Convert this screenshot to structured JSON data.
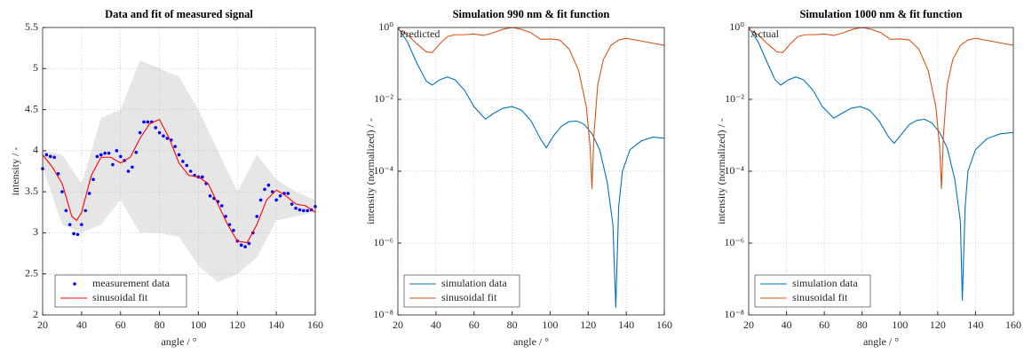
{
  "chart_data": [
    {
      "type": "line",
      "title": "Data and fit of measured signal",
      "x_label": "angle / °",
      "y_label": "intensity / -",
      "xlim": [
        20,
        160
      ],
      "ylim": [
        2,
        5.5
      ],
      "xticks": [
        20,
        40,
        60,
        80,
        100,
        120,
        140,
        160
      ],
      "yticks": [
        2,
        2.5,
        3,
        3.5,
        4,
        4.5,
        5,
        5.5
      ],
      "grid": true,
      "legend": "lower left",
      "band": {
        "color": "#e6e6e6",
        "x": [
          20,
          30,
          40,
          50,
          60,
          70,
          80,
          90,
          100,
          110,
          120,
          130,
          140,
          150,
          160
        ],
        "upper": [
          4.0,
          3.95,
          3.6,
          4.4,
          4.5,
          5.1,
          5.0,
          4.9,
          4.5,
          4.0,
          3.5,
          3.95,
          3.65,
          3.5,
          3.4
        ],
        "lower": [
          3.8,
          3.1,
          3.0,
          3.1,
          3.4,
          3.0,
          3.0,
          2.95,
          2.6,
          2.4,
          2.5,
          2.7,
          3.15,
          3.2,
          3.25
        ]
      },
      "series": [
        {
          "name": "measurement data",
          "type": "scatter",
          "color": "#0000ff",
          "x": [
            20,
            22,
            24,
            26,
            28,
            30,
            32,
            34,
            36,
            38,
            40,
            42,
            44,
            46,
            48,
            50,
            52,
            54,
            56,
            58,
            60,
            62,
            64,
            66,
            68,
            70,
            72,
            74,
            76,
            78,
            80,
            82,
            84,
            86,
            88,
            90,
            92,
            94,
            96,
            98,
            100,
            102,
            104,
            106,
            108,
            110,
            112,
            114,
            116,
            118,
            120,
            122,
            124,
            126,
            128,
            130,
            132,
            134,
            136,
            138,
            140,
            142,
            144,
            146,
            148,
            150,
            152,
            154,
            156,
            158,
            160
          ],
          "values": [
            3.78,
            3.95,
            3.93,
            3.92,
            3.72,
            3.5,
            3.27,
            3.1,
            2.99,
            2.98,
            3.1,
            3.27,
            3.48,
            3.65,
            3.93,
            3.95,
            3.97,
            3.97,
            3.83,
            4.0,
            3.93,
            3.88,
            3.75,
            3.8,
            3.98,
            4.22,
            4.35,
            4.35,
            4.35,
            4.28,
            4.22,
            4.18,
            4.15,
            4.13,
            4.05,
            3.95,
            3.87,
            3.82,
            3.75,
            3.7,
            3.68,
            3.68,
            3.6,
            3.45,
            3.42,
            3.38,
            3.33,
            3.2,
            3.1,
            3.03,
            2.9,
            2.85,
            2.83,
            2.87,
            3.0,
            3.2,
            3.4,
            3.53,
            3.58,
            3.5,
            3.4,
            3.45,
            3.48,
            3.48,
            3.35,
            3.3,
            3.28,
            3.27,
            3.27,
            3.28,
            3.32
          ]
        },
        {
          "name": "sinusoidal fit",
          "type": "line",
          "color": "#ff0000",
          "x": [
            20,
            25,
            30,
            35,
            37.5,
            40,
            45,
            50,
            55,
            60,
            65,
            70,
            75,
            80,
            85,
            90,
            95,
            100,
            105,
            110,
            115,
            120,
            125,
            130,
            135,
            140,
            145,
            150,
            155,
            160
          ],
          "values": [
            3.95,
            3.8,
            3.6,
            3.2,
            3.15,
            3.25,
            3.7,
            3.92,
            3.92,
            3.85,
            3.92,
            4.15,
            4.33,
            4.38,
            4.15,
            3.85,
            3.7,
            3.68,
            3.6,
            3.35,
            3.1,
            2.9,
            2.88,
            3.1,
            3.4,
            3.52,
            3.45,
            3.35,
            3.33,
            3.25
          ]
        }
      ]
    },
    {
      "type": "line",
      "title": "Simulation 990 nm & fit function",
      "x_label": "angle / °",
      "y_label": "intensity (normalized) / -",
      "annotation": "Predicted",
      "log_y": true,
      "xlim": [
        20,
        160
      ],
      "ylim": [
        1e-08,
        1
      ],
      "xticks": [
        20,
        40,
        60,
        80,
        100,
        120,
        140,
        160
      ],
      "yticks": [
        {
          "value": 1e-08,
          "label": "10⁻⁸"
        },
        {
          "value": 1e-06,
          "label": "10⁻⁶"
        },
        {
          "value": 0.0001,
          "label": "10⁻⁴"
        },
        {
          "value": 0.01,
          "label": "10⁻²"
        },
        {
          "value": 1,
          "label": "10⁰"
        }
      ],
      "grid": true,
      "legend": "lower left",
      "series": [
        {
          "name": "simulation data",
          "type": "line",
          "color": "#0072bd",
          "x": [
            20,
            25,
            30,
            35,
            38,
            42,
            46,
            50,
            55,
            60,
            66,
            70,
            75,
            80,
            85,
            90,
            95,
            98,
            102,
            106,
            110,
            114,
            118,
            122,
            126,
            130,
            133,
            134.5,
            136,
            138,
            142,
            148,
            154,
            160
          ],
          "values": [
            1,
            0.4,
            0.1,
            0.032,
            0.025,
            0.035,
            0.042,
            0.035,
            0.018,
            0.0063,
            0.0028,
            0.004,
            0.0056,
            0.0063,
            0.005,
            0.0025,
            0.00079,
            0.00045,
            0.001,
            0.0018,
            0.0024,
            0.0025,
            0.002,
            0.0011,
            0.0004,
            5e-05,
            3.2e-06,
            1.6e-08,
            1e-05,
            0.0001,
            0.0004,
            0.0007,
            0.00089,
            0.00083
          ]
        },
        {
          "name": "sinusoidal fit",
          "type": "line",
          "color": "#d95319",
          "x": [
            20,
            25,
            30,
            35,
            38,
            42,
            46,
            50,
            55,
            60,
            65,
            70,
            75,
            80,
            85,
            90,
            95,
            100,
            105,
            110,
            115,
            119,
            121,
            122,
            123,
            125,
            128,
            132,
            136,
            140,
            150,
            160
          ],
          "values": [
            0.89,
            0.63,
            0.35,
            0.21,
            0.2,
            0.35,
            0.56,
            0.63,
            0.63,
            0.66,
            0.6,
            0.71,
            0.89,
            1,
            0.89,
            0.71,
            0.47,
            0.48,
            0.45,
            0.25,
            0.063,
            0.0063,
            0.0005,
            3.2e-05,
            0.001,
            0.025,
            0.13,
            0.32,
            0.45,
            0.5,
            0.4,
            0.32
          ]
        }
      ]
    },
    {
      "type": "line",
      "title": "Simulation 1000 nm & fit function",
      "x_label": "angle / °",
      "y_label": "intensity (normalized) / -",
      "annotation": "Actual",
      "log_y": true,
      "xlim": [
        20,
        160
      ],
      "ylim": [
        1e-08,
        1
      ],
      "xticks": [
        20,
        40,
        60,
        80,
        100,
        120,
        140,
        160
      ],
      "yticks": [
        {
          "value": 1e-08,
          "label": "10⁻⁸"
        },
        {
          "value": 1e-06,
          "label": "10⁻⁶"
        },
        {
          "value": 0.0001,
          "label": "10⁻⁴"
        },
        {
          "value": 0.01,
          "label": "10⁻²"
        },
        {
          "value": 1,
          "label": "10⁰"
        }
      ],
      "grid": true,
      "legend": "lower left",
      "series": [
        {
          "name": "simulation data",
          "type": "line",
          "color": "#0072bd",
          "x": [
            20,
            25,
            30,
            34,
            37,
            41,
            45,
            49,
            54,
            59,
            65,
            69,
            74,
            79,
            84,
            89,
            94,
            97,
            101,
            105,
            109,
            113,
            117,
            121,
            125,
            129,
            132,
            133,
            134.5,
            136,
            140,
            146,
            153,
            160
          ],
          "values": [
            1,
            0.4,
            0.1,
            0.035,
            0.025,
            0.035,
            0.042,
            0.035,
            0.018,
            0.0063,
            0.003,
            0.004,
            0.0056,
            0.0063,
            0.005,
            0.0025,
            0.0009,
            0.0006,
            0.0011,
            0.002,
            0.0026,
            0.0028,
            0.0022,
            0.0012,
            0.00045,
            6e-05,
            4e-06,
            2.5e-08,
            1e-05,
            0.0001,
            0.0004,
            0.0008,
            0.0011,
            0.0012
          ]
        },
        {
          "name": "sinusoidal fit",
          "type": "line",
          "color": "#d95319",
          "x": [
            20,
            25,
            30,
            35,
            38,
            42,
            46,
            50,
            55,
            60,
            65,
            70,
            75,
            80,
            85,
            90,
            95,
            100,
            105,
            110,
            115,
            119,
            121,
            122,
            123,
            125,
            128,
            132,
            136,
            140,
            150,
            160
          ],
          "values": [
            0.89,
            0.63,
            0.35,
            0.21,
            0.2,
            0.35,
            0.56,
            0.63,
            0.63,
            0.66,
            0.6,
            0.71,
            0.89,
            1,
            0.89,
            0.71,
            0.47,
            0.48,
            0.45,
            0.25,
            0.063,
            0.0063,
            0.0005,
            3.2e-05,
            0.001,
            0.025,
            0.13,
            0.32,
            0.45,
            0.5,
            0.4,
            0.32
          ]
        }
      ]
    }
  ]
}
